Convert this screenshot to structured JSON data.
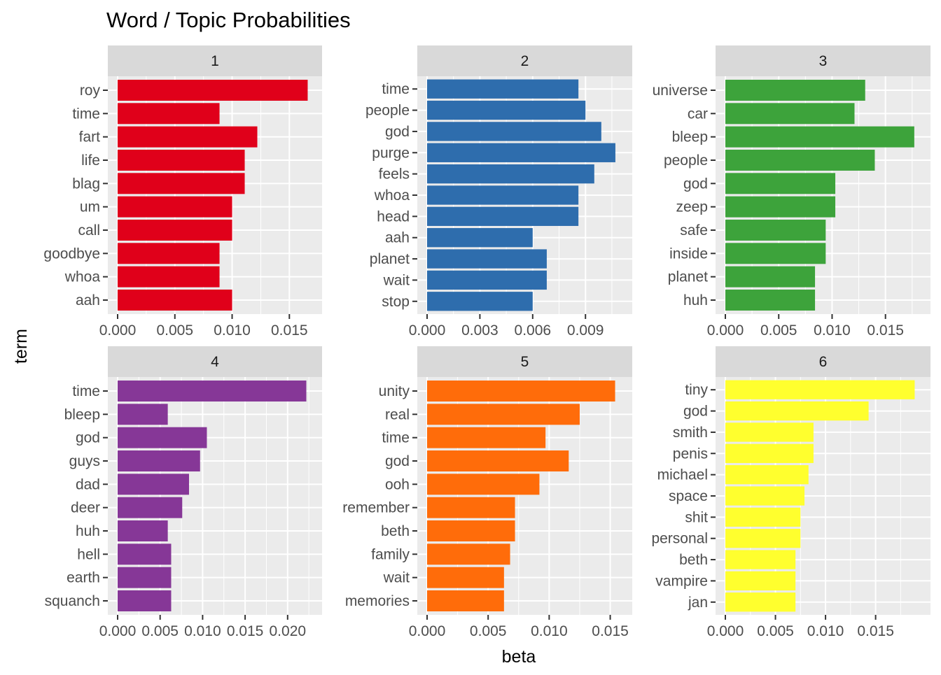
{
  "chart_data": {
    "type": "bar",
    "title": "Word / Topic Probabilities",
    "xlabel": "beta",
    "ylabel": "term",
    "facets": [
      {
        "label": "1",
        "color": "#E0001A",
        "xlim": [
          0,
          0.017
        ],
        "xticks": [
          0,
          0.005,
          0.01,
          0.015
        ],
        "xtick_labels": [
          "0.000",
          "0.005",
          "0.010",
          "0.015"
        ],
        "categories": [
          "roy",
          "time",
          "fart",
          "life",
          "blag",
          "um",
          "call",
          "goodbye",
          "whoa",
          "aah"
        ],
        "values": [
          0.0166,
          0.0089,
          0.0122,
          0.0111,
          0.0111,
          0.01,
          0.01,
          0.0089,
          0.0089,
          0.01
        ]
      },
      {
        "label": "2",
        "color": "#2E6DAD",
        "xlim": [
          0,
          0.0111
        ],
        "xticks": [
          0,
          0.003,
          0.006,
          0.009
        ],
        "xtick_labels": [
          "0.000",
          "0.003",
          "0.006",
          "0.009"
        ],
        "categories": [
          "time",
          "people",
          "god",
          "purge",
          "feels",
          "whoa",
          "head",
          "aah",
          "planet",
          "wait",
          "stop"
        ],
        "values": [
          0.0086,
          0.009,
          0.0099,
          0.0107,
          0.0095,
          0.0086,
          0.0086,
          0.006,
          0.0068,
          0.0068,
          0.006
        ]
      },
      {
        "label": "3",
        "color": "#3DA33B",
        "xlim": [
          0,
          0.0183
        ],
        "xticks": [
          0,
          0.005,
          0.01,
          0.015
        ],
        "xtick_labels": [
          "0.000",
          "0.005",
          "0.010",
          "0.015"
        ],
        "categories": [
          "universe",
          "car",
          "bleep",
          "people",
          "god",
          "zeep",
          "safe",
          "inside",
          "planet",
          "huh"
        ],
        "values": [
          0.0131,
          0.0121,
          0.0177,
          0.014,
          0.0103,
          0.0103,
          0.0094,
          0.0094,
          0.0084,
          0.0084
        ]
      },
      {
        "label": "4",
        "color": "#863797",
        "xlim": [
          0,
          0.0229
        ],
        "xticks": [
          0,
          0.005,
          0.01,
          0.015,
          0.02
        ],
        "xtick_labels": [
          "0.000",
          "0.005",
          "0.010",
          "0.015",
          "0.020"
        ],
        "categories": [
          "time",
          "bleep",
          "god",
          "guys",
          "dad",
          "deer",
          "huh",
          "hell",
          "earth",
          "squanch"
        ],
        "values": [
          0.0222,
          0.0059,
          0.0105,
          0.0097,
          0.0084,
          0.0076,
          0.0059,
          0.0063,
          0.0063,
          0.0063
        ]
      },
      {
        "label": "5",
        "color": "#FF6C0A",
        "xlim": [
          0,
          0.016
        ],
        "xticks": [
          0,
          0.005,
          0.01,
          0.015
        ],
        "xtick_labels": [
          "0.000",
          "0.005",
          "0.010",
          "0.015"
        ],
        "categories": [
          "unity",
          "real",
          "time",
          "god",
          "ooh",
          "remember",
          "beth",
          "family",
          "wait",
          "memories"
        ],
        "values": [
          0.0154,
          0.0125,
          0.0097,
          0.0116,
          0.0092,
          0.0072,
          0.0072,
          0.0068,
          0.0063,
          0.0063
        ]
      },
      {
        "label": "6",
        "color": "#FFFF2E",
        "xlim": [
          0,
          0.0195
        ],
        "xticks": [
          0,
          0.005,
          0.01,
          0.015
        ],
        "xtick_labels": [
          "0.000",
          "0.005",
          "0.010",
          "0.015"
        ],
        "categories": [
          "tiny",
          "god",
          "smith",
          "penis",
          "michael",
          "space",
          "shit",
          "personal",
          "beth",
          "vampire",
          "jan"
        ],
        "values": [
          0.0189,
          0.0143,
          0.0088,
          0.0088,
          0.0083,
          0.0079,
          0.0075,
          0.0075,
          0.007,
          0.007,
          0.007
        ]
      }
    ],
    "grid": true,
    "legend": "none"
  }
}
